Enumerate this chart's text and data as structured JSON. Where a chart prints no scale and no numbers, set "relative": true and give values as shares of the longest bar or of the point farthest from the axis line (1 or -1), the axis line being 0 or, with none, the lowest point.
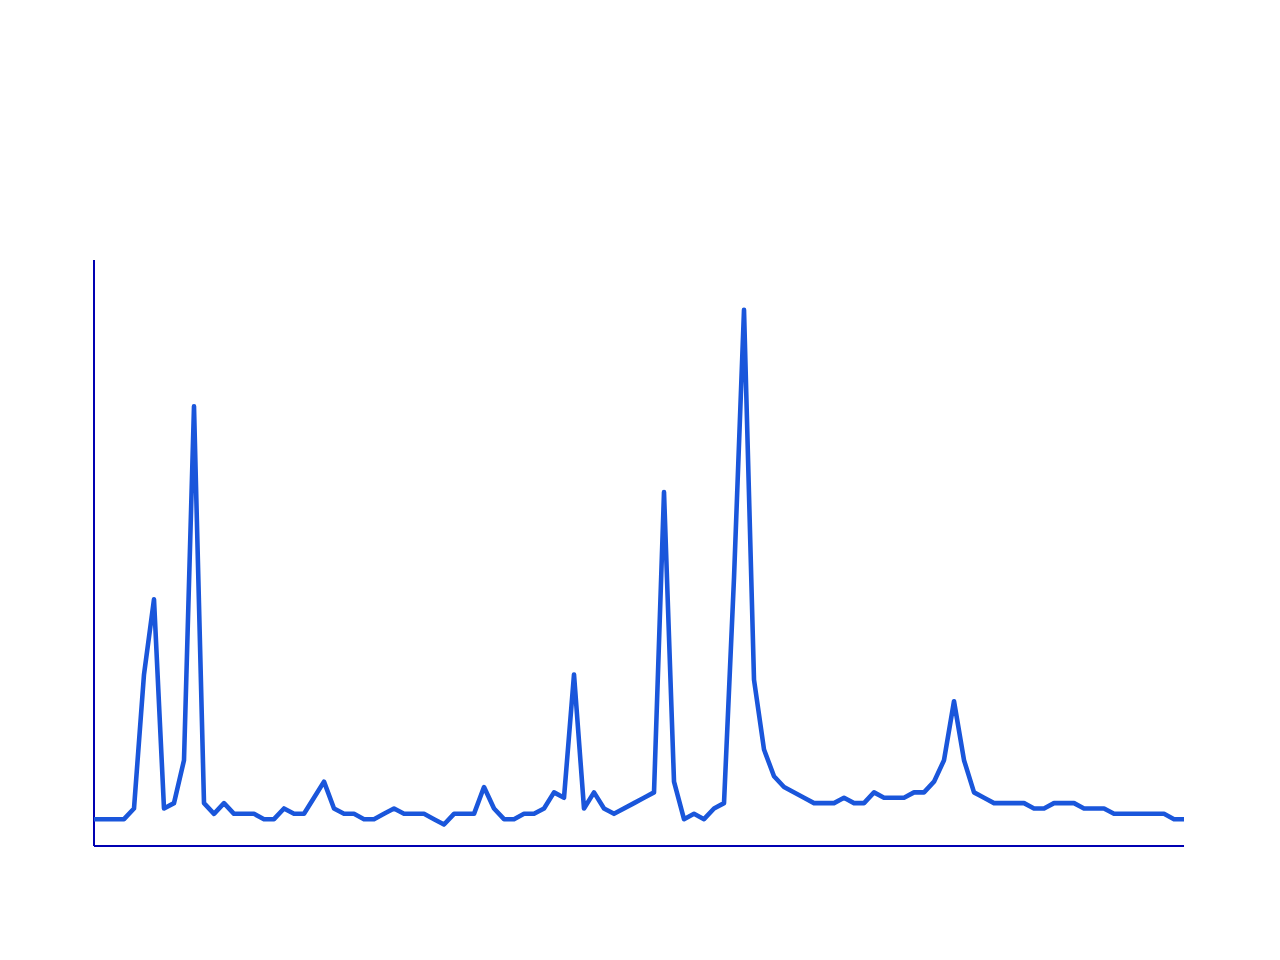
{
  "chart_data": {
    "type": "line",
    "relative": true,
    "categories": [
      null,
      null,
      null,
      null,
      null,
      null,
      null,
      null,
      null,
      null,
      null,
      null,
      null,
      null,
      null,
      null,
      null,
      null,
      null,
      null,
      null,
      null,
      null,
      null,
      null,
      null,
      null,
      null,
      null,
      null,
      null,
      null,
      null,
      null,
      null,
      null,
      null,
      null,
      null,
      null,
      null,
      null,
      null,
      null,
      null,
      null,
      null,
      null,
      null,
      null,
      null,
      null,
      null,
      null,
      null,
      null,
      null,
      null,
      null,
      null,
      null,
      null,
      null,
      null,
      null,
      null,
      null,
      null,
      null,
      null,
      null,
      null,
      null,
      null,
      null,
      null,
      null,
      null,
      null,
      null,
      null,
      null,
      null,
      null,
      null,
      null,
      null,
      null,
      null,
      null,
      null,
      null,
      null,
      null,
      null,
      null,
      null,
      null,
      null,
      null,
      null,
      null,
      null,
      null,
      null,
      null,
      null,
      null,
      null,
      null
    ],
    "series": [
      {
        "color": "#1a56db",
        "values": [
          0.05,
          0.05,
          0.05,
          0.05,
          0.07,
          0.32,
          0.46,
          0.07,
          0.08,
          0.16,
          0.82,
          0.08,
          0.06,
          0.08,
          0.06,
          0.06,
          0.06,
          0.05,
          0.05,
          0.07,
          0.06,
          0.06,
          0.09,
          0.12,
          0.07,
          0.06,
          0.06,
          0.05,
          0.05,
          0.06,
          0.07,
          0.06,
          0.06,
          0.06,
          0.05,
          0.04,
          0.06,
          0.06,
          0.06,
          0.11,
          0.07,
          0.05,
          0.05,
          0.06,
          0.06,
          0.07,
          0.1,
          0.09,
          0.32,
          0.07,
          0.1,
          0.07,
          0.06,
          0.07,
          0.08,
          0.09,
          0.1,
          0.66,
          0.12,
          0.05,
          0.06,
          0.05,
          0.07,
          0.08,
          0.5,
          1.0,
          0.31,
          0.18,
          0.13,
          0.11,
          0.1,
          0.09,
          0.08,
          0.08,
          0.08,
          0.09,
          0.08,
          0.08,
          0.1,
          0.09,
          0.09,
          0.09,
          0.1,
          0.1,
          0.12,
          0.16,
          0.27,
          0.16,
          0.1,
          0.09,
          0.08,
          0.08,
          0.08,
          0.08,
          0.07,
          0.07,
          0.08,
          0.08,
          0.08,
          0.07,
          0.07,
          0.07,
          0.06,
          0.06,
          0.06,
          0.06,
          0.06,
          0.06,
          0.05,
          0.05
        ]
      }
    ],
    "marker": "none",
    "line_style": "solid"
  }
}
